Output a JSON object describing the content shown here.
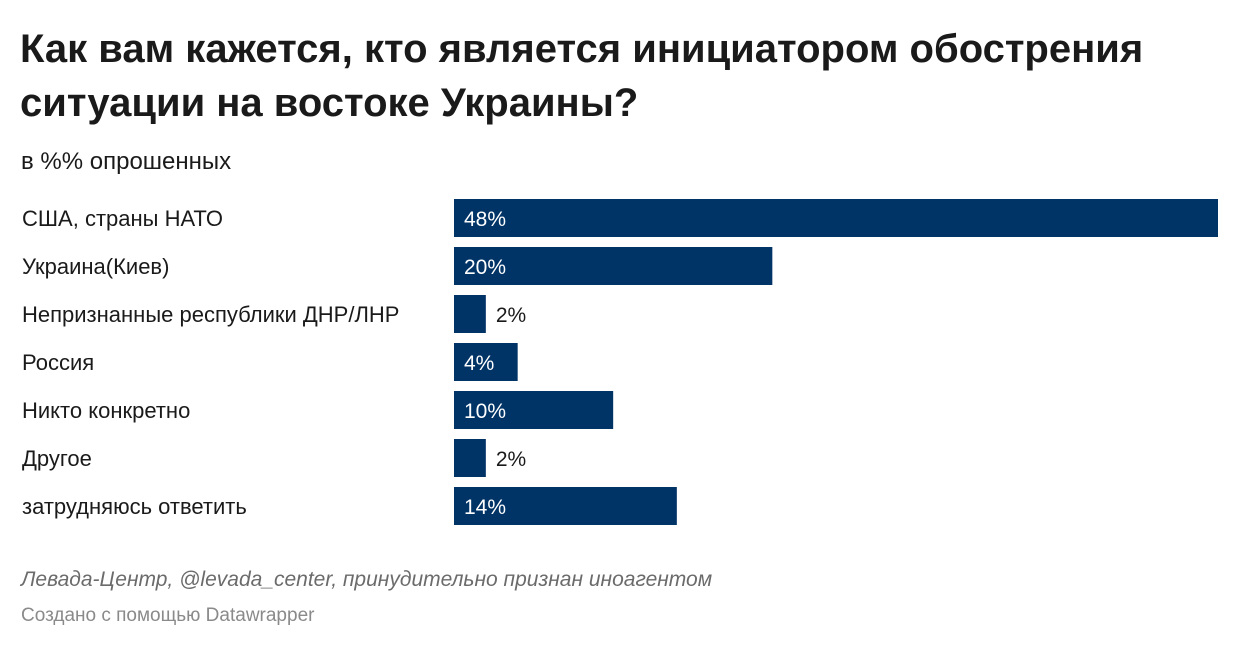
{
  "chart_data": {
    "type": "bar",
    "orientation": "horizontal",
    "title": "Как вам кажется, кто является инициатором обострения ситуации на востоке Украины?",
    "subtitle": "в %% опрошенных",
    "categories": [
      "США, страны НАТО",
      "Украина(Киев)",
      "Непризнанные республики ДНР/ЛНР",
      "Россия",
      "Никто конкретно",
      "Другое",
      "затрудняюсь ответить"
    ],
    "values": [
      48,
      20,
      2,
      4,
      10,
      2,
      14
    ],
    "value_labels": [
      "48%",
      "20%",
      "2%",
      "4%",
      "10%",
      "2%",
      "14%"
    ],
    "xlim": [
      0,
      48
    ],
    "grid": false,
    "bar_color": "#003366",
    "label_inside_color": "#ffffff",
    "label_outside_color": "#1a1a1a"
  },
  "footer": {
    "source": "Левада-Центр, @levada_center, принудительно признан иноагентом",
    "credit": "Создано с помощью Datawrapper"
  }
}
